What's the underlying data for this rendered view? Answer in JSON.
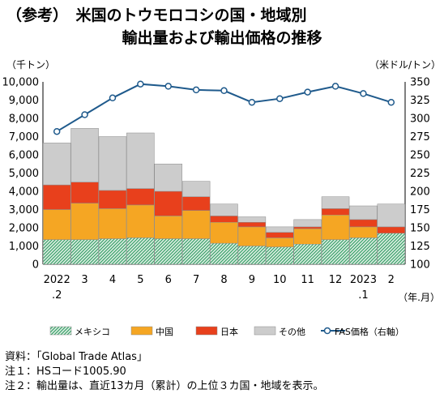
{
  "title_line1": "（参考）　米国のトウモロコシの国・地域別",
  "title_line2": "輸出量および輸出価格の推移",
  "notes": [
    "資料：「Global Trade Atlas」",
    "注１：HSコード1005.90",
    "注２：輸出量は、直近13カ月（累計）の上位３カ国・地域を表示。"
  ],
  "colors": {
    "mexico": "#4caf7d",
    "china": "#f5a623",
    "japan": "#e8401c",
    "other": "#cccccc",
    "fas": "#1f5a8c"
  },
  "chart_data": {
    "type": "bar",
    "stacked": true,
    "categories": [
      "2022\n.2",
      "3",
      "4",
      "5",
      "6",
      "7",
      "8",
      "9",
      "10",
      "11",
      "12",
      "2023\n.1",
      "2"
    ],
    "xlabel": "（年.月）",
    "ylabel_left": "（千トン）",
    "ylabel_right": "（米ドル/トン）",
    "ylim_left": [
      0,
      10000
    ],
    "yticks_left": [
      "0",
      "1,000",
      "2,000",
      "3,000",
      "4,000",
      "5,000",
      "6,000",
      "7,000",
      "8,000",
      "9,000",
      "10,000"
    ],
    "ylim_right": [
      100,
      350
    ],
    "yticks_right": [
      "100",
      "125",
      "150",
      "175",
      "200",
      "225",
      "250",
      "275",
      "300",
      "325",
      "350"
    ],
    "series": [
      {
        "name": "メキシコ",
        "key": "mexico",
        "values": [
          1350,
          1350,
          1400,
          1450,
          1400,
          1400,
          1150,
          1000,
          950,
          1100,
          1350,
          1450,
          1700
        ]
      },
      {
        "name": "中国",
        "key": "china",
        "values": [
          1650,
          2000,
          1650,
          1800,
          1250,
          1550,
          1150,
          1050,
          500,
          850,
          1350,
          600,
          0
        ]
      },
      {
        "name": "日本",
        "key": "japan",
        "values": [
          1350,
          1150,
          1000,
          900,
          1350,
          750,
          350,
          250,
          300,
          100,
          350,
          400,
          350
        ]
      },
      {
        "name": "その他",
        "key": "other",
        "values": [
          2300,
          2950,
          2950,
          3050,
          1500,
          850,
          650,
          300,
          300,
          400,
          650,
          750,
          1250
        ]
      }
    ],
    "line": {
      "name": "FAS価格（右軸）",
      "axis": "right",
      "values": [
        282,
        305,
        328,
        347,
        344,
        339,
        338,
        322,
        327,
        336,
        344,
        334,
        322
      ]
    },
    "grid": false,
    "legend": "bottom"
  }
}
